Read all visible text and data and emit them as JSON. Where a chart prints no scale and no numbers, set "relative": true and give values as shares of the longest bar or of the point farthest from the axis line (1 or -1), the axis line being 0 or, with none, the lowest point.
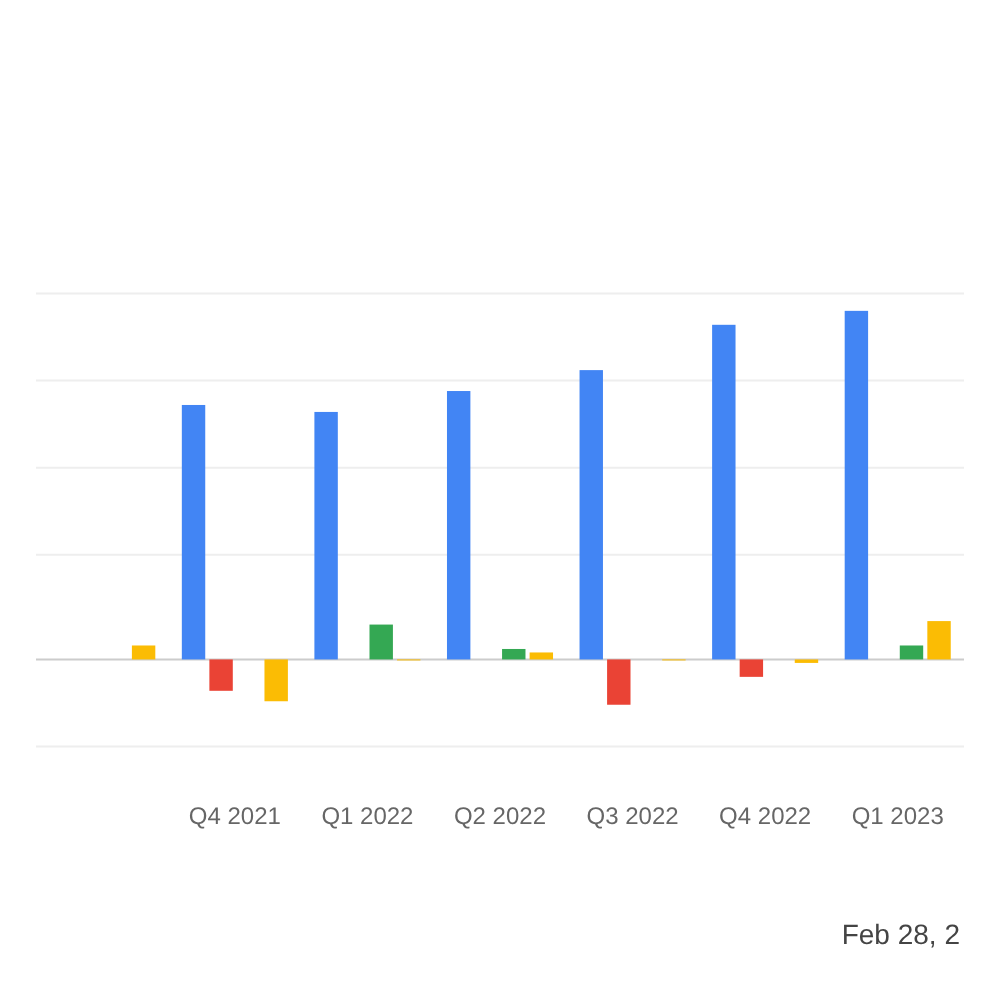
{
  "chart_data": {
    "type": "bar",
    "relative": true,
    "grid": "y",
    "categories": [
      null,
      "Q4 2021",
      "Q1 2022",
      "Q2 2022",
      "Q3 2022",
      "Q4 2022",
      "Q1 2023"
    ],
    "series": [
      {
        "color": "#4285f4",
        "values": [
          null,
          0.73,
          0.71,
          0.77,
          0.83,
          0.96,
          1
        ]
      },
      {
        "color": "#ea4335",
        "values": [
          null,
          -0.09,
          null,
          null,
          -0.13,
          -0.05,
          null
        ]
      },
      {
        "color": "#34a853",
        "values": [
          null,
          null,
          0.1,
          0.03,
          null,
          null,
          0.04
        ]
      },
      {
        "color": "#fbbc04",
        "values": [
          0.04,
          -0.12,
          0,
          0.02,
          0,
          -0.01,
          0.11
        ]
      }
    ],
    "annotations": [
      "Feb 28, 2"
    ]
  }
}
